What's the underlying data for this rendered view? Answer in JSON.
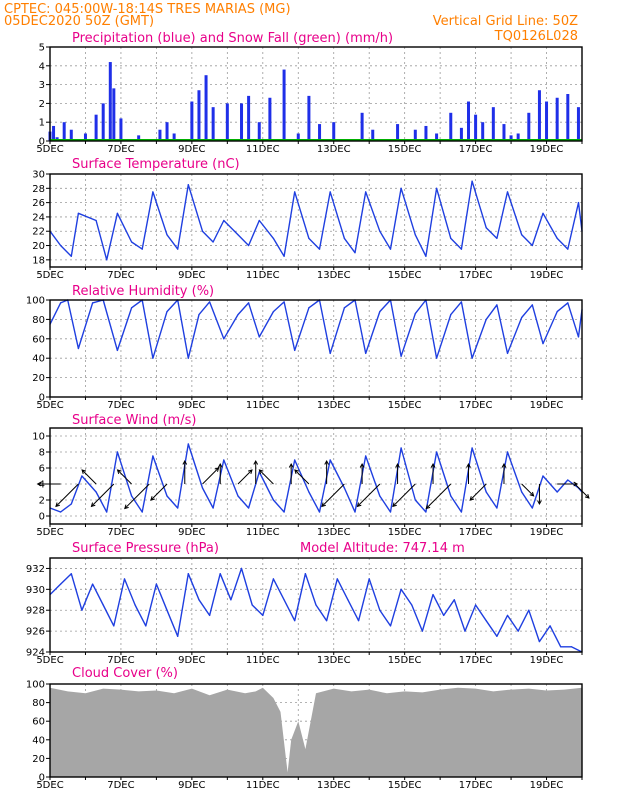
{
  "header": {
    "line1": "CPTEC:  045:00W-18:14S  TRES MARIAS (MG)",
    "line2_left": "05DEC2020 50Z (GMT)",
    "line2_right": "Vertical Grid Line: 50Z",
    "code": "TQ0126L028"
  },
  "colors": {
    "precip": "#1f2fe8",
    "snow": "#00b000",
    "line": "#1f3fe0",
    "cloud": "#a6a6a6",
    "title": "#e8008a",
    "header": "#ff7f00"
  },
  "x_axis": {
    "labels": [
      "5DEC",
      "7DEC",
      "9DEC",
      "11DEC",
      "13DEC",
      "15DEC",
      "17DEC",
      "19DEC"
    ],
    "start_day": 5,
    "end_day": 20
  },
  "chart_data": [
    {
      "id": "precip",
      "type": "bar",
      "title": "Precipitation (blue) and Snow Fall (green) (mm/h)",
      "ylim": [
        0,
        5
      ],
      "yticks": [
        0,
        1,
        2,
        3,
        4,
        5
      ],
      "x": [
        5.0,
        5.1,
        5.2,
        5.4,
        5.6,
        6.0,
        6.3,
        6.5,
        6.7,
        6.8,
        7.0,
        7.5,
        8.1,
        8.3,
        8.5,
        9.0,
        9.2,
        9.4,
        9.6,
        10.0,
        10.4,
        10.6,
        10.9,
        11.2,
        11.6,
        12.0,
        12.3,
        12.6,
        13.0,
        13.8,
        14.1,
        14.5,
        14.8,
        15.3,
        15.6,
        15.9,
        16.3,
        16.6,
        16.8,
        17.0,
        17.2,
        17.5,
        17.8,
        18.0,
        18.2,
        18.5,
        18.8,
        19.0,
        19.3,
        19.6,
        19.9
      ],
      "values": [
        0.5,
        0.8,
        0.2,
        1.0,
        0.6,
        0.4,
        1.4,
        2.0,
        4.2,
        2.8,
        1.2,
        0.3,
        0.6,
        1.0,
        0.4,
        2.1,
        2.7,
        3.5,
        1.8,
        2.0,
        2.0,
        2.4,
        1.0,
        2.3,
        3.8,
        0.4,
        2.4,
        0.9,
        1.0,
        1.5,
        0.6,
        0.1,
        0.9,
        0.6,
        0.8,
        0.4,
        1.5,
        0.7,
        2.1,
        1.4,
        1.0,
        1.8,
        0.9,
        0.3,
        0.4,
        1.5,
        2.7,
        2.1,
        2.3,
        2.5,
        1.8
      ],
      "snow": "all zero"
    },
    {
      "id": "temp",
      "type": "line",
      "title": "Surface Temperature (nC)",
      "ylim": [
        17,
        30
      ],
      "yticks": [
        18,
        20,
        22,
        24,
        26,
        28,
        30
      ],
      "x": [
        5.0,
        5.3,
        5.6,
        5.8,
        6.3,
        6.6,
        6.9,
        7.3,
        7.6,
        7.9,
        8.3,
        8.6,
        8.9,
        9.3,
        9.6,
        9.9,
        10.3,
        10.6,
        10.9,
        11.3,
        11.6,
        11.9,
        12.3,
        12.6,
        12.9,
        13.3,
        13.6,
        13.9,
        14.3,
        14.6,
        14.9,
        15.3,
        15.6,
        15.9,
        16.3,
        16.6,
        16.9,
        17.3,
        17.6,
        17.9,
        18.3,
        18.6,
        18.9,
        19.3,
        19.6,
        19.9,
        20.0
      ],
      "values": [
        22.0,
        20.0,
        18.5,
        24.5,
        23.5,
        18.0,
        24.5,
        20.5,
        19.5,
        27.5,
        21.5,
        19.5,
        28.5,
        22.0,
        20.5,
        23.5,
        21.5,
        20.0,
        23.5,
        21.0,
        18.5,
        27.5,
        21.0,
        19.5,
        27.5,
        21.0,
        19.0,
        27.5,
        22.0,
        19.5,
        28.0,
        21.5,
        18.5,
        28.0,
        21.0,
        19.5,
        29.0,
        22.5,
        21.0,
        27.5,
        21.5,
        20.0,
        24.5,
        21.0,
        19.5,
        26.0,
        22.0
      ]
    },
    {
      "id": "rh",
      "type": "line",
      "title": "Relative Humidity (%)",
      "ylim": [
        0,
        100
      ],
      "yticks": [
        0,
        20,
        40,
        60,
        80,
        100
      ],
      "x": [
        5.0,
        5.3,
        5.5,
        5.8,
        6.2,
        6.5,
        6.9,
        7.3,
        7.6,
        7.9,
        8.3,
        8.6,
        8.9,
        9.2,
        9.5,
        9.9,
        10.3,
        10.6,
        10.9,
        11.3,
        11.6,
        11.9,
        12.3,
        12.6,
        12.9,
        13.3,
        13.6,
        13.9,
        14.3,
        14.6,
        14.9,
        15.3,
        15.6,
        15.9,
        16.3,
        16.6,
        16.9,
        17.3,
        17.6,
        17.9,
        18.3,
        18.6,
        18.9,
        19.3,
        19.6,
        19.9,
        20.0
      ],
      "values": [
        75,
        97,
        100,
        50,
        97,
        100,
        48,
        92,
        100,
        40,
        88,
        100,
        40,
        85,
        98,
        60,
        85,
        97,
        62,
        88,
        98,
        48,
        92,
        100,
        45,
        92,
        100,
        45,
        88,
        100,
        42,
        86,
        100,
        40,
        85,
        98,
        40,
        80,
        95,
        45,
        82,
        95,
        55,
        88,
        97,
        62,
        90
      ]
    },
    {
      "id": "wind",
      "type": "line",
      "title": "Surface Wind (m/s)",
      "ylim": [
        -1,
        11
      ],
      "yticks": [
        0,
        2,
        4,
        6,
        8,
        10
      ],
      "x": [
        5.0,
        5.3,
        5.6,
        5.9,
        6.3,
        6.6,
        6.9,
        7.3,
        7.6,
        7.9,
        8.3,
        8.6,
        8.9,
        9.3,
        9.6,
        9.9,
        10.3,
        10.6,
        10.9,
        11.3,
        11.6,
        11.9,
        12.3,
        12.6,
        12.9,
        13.3,
        13.6,
        13.9,
        14.3,
        14.6,
        14.9,
        15.3,
        15.6,
        15.9,
        16.3,
        16.6,
        16.9,
        17.3,
        17.6,
        17.9,
        18.3,
        18.6,
        18.9,
        19.3,
        19.6,
        19.9,
        20.0
      ],
      "values": [
        1.0,
        0.5,
        1.5,
        5.0,
        3.0,
        0.5,
        8.0,
        2.5,
        0.5,
        7.5,
        2.5,
        1.0,
        9.0,
        3.5,
        1.0,
        7.0,
        2.5,
        1.0,
        5.5,
        2.0,
        0.5,
        7.0,
        3.0,
        0.5,
        7.0,
        3.5,
        0.5,
        7.5,
        2.5,
        0.5,
        8.5,
        2.0,
        0.5,
        8.0,
        2.5,
        0.5,
        8.5,
        3.0,
        1.0,
        8.0,
        3.0,
        1.0,
        5.0,
        3.0,
        4.5,
        3.5,
        3.0
      ],
      "barbs": [
        {
          "x": 5.3,
          "len": 0.5,
          "dir": "left"
        },
        {
          "x": 5.8,
          "len": 0.8,
          "dir": "down-left"
        },
        {
          "x": 6.3,
          "len": 0.4,
          "dir": "up-left"
        },
        {
          "x": 6.8,
          "len": 0.8,
          "dir": "down-left"
        },
        {
          "x": 7.3,
          "len": 0.4,
          "dir": "up-left"
        },
        {
          "x": 7.8,
          "len": 0.9,
          "dir": "down-left"
        },
        {
          "x": 8.3,
          "len": 0.5,
          "dir": "down-left"
        },
        {
          "x": 8.8,
          "len": 0.5,
          "dir": "up"
        },
        {
          "x": 9.3,
          "len": 0.5,
          "dir": "up-right"
        },
        {
          "x": 9.8,
          "len": 0.4,
          "dir": "up"
        },
        {
          "x": 10.3,
          "len": 0.4,
          "dir": "up-right"
        },
        {
          "x": 10.8,
          "len": 0.5,
          "dir": "up"
        },
        {
          "x": 11.3,
          "len": 0.4,
          "dir": "up-left"
        },
        {
          "x": 11.8,
          "len": 0.4,
          "dir": "up"
        },
        {
          "x": 12.3,
          "len": 0.4,
          "dir": "up-left"
        },
        {
          "x": 12.8,
          "len": 0.5,
          "dir": "up"
        },
        {
          "x": 13.3,
          "len": 0.8,
          "dir": "down-left"
        },
        {
          "x": 13.8,
          "len": 0.4,
          "dir": "up"
        },
        {
          "x": 14.3,
          "len": 0.8,
          "dir": "down-left"
        },
        {
          "x": 14.8,
          "len": 0.4,
          "dir": "up"
        },
        {
          "x": 15.3,
          "len": 0.8,
          "dir": "down-left"
        },
        {
          "x": 15.8,
          "len": 0.4,
          "dir": "up"
        },
        {
          "x": 16.3,
          "len": 0.9,
          "dir": "down-left"
        },
        {
          "x": 16.8,
          "len": 0.4,
          "dir": "up"
        },
        {
          "x": 17.3,
          "len": 0.5,
          "dir": "down-left"
        },
        {
          "x": 17.8,
          "len": 0.4,
          "dir": "up"
        },
        {
          "x": 18.3,
          "len": 0.3,
          "dir": "down-right"
        },
        {
          "x": 18.8,
          "len": 0.4,
          "dir": "down"
        },
        {
          "x": 19.3,
          "len": 0.4,
          "dir": "right"
        },
        {
          "x": 19.8,
          "len": 0.4,
          "dir": "down-right"
        }
      ]
    },
    {
      "id": "pres",
      "type": "line",
      "title": "Surface Pressure (hPa)",
      "subtitle": "Model Altitude: 747.14 m",
      "ylim": [
        924,
        933
      ],
      "yticks": [
        924,
        926,
        928,
        930,
        932
      ],
      "x": [
        5.0,
        5.3,
        5.6,
        5.9,
        6.2,
        6.5,
        6.8,
        7.1,
        7.4,
        7.7,
        8.0,
        8.3,
        8.6,
        8.9,
        9.2,
        9.5,
        9.8,
        10.1,
        10.4,
        10.7,
        11.0,
        11.3,
        11.6,
        11.9,
        12.2,
        12.5,
        12.8,
        13.1,
        13.4,
        13.7,
        14.0,
        14.3,
        14.6,
        14.9,
        15.2,
        15.5,
        15.8,
        16.1,
        16.4,
        16.7,
        17.0,
        17.3,
        17.6,
        17.9,
        18.2,
        18.5,
        18.8,
        19.1,
        19.4,
        19.7,
        20.0
      ],
      "values": [
        929.5,
        930.5,
        931.5,
        928.0,
        930.5,
        928.5,
        926.5,
        931.0,
        928.5,
        926.5,
        930.5,
        928.0,
        925.5,
        931.5,
        929.0,
        927.5,
        931.5,
        929.0,
        932.0,
        928.5,
        927.5,
        931.0,
        929.0,
        927.0,
        931.5,
        928.5,
        927.0,
        931.0,
        929.0,
        927.0,
        931.0,
        928.0,
        926.5,
        930.0,
        928.5,
        926.0,
        929.5,
        927.5,
        929.0,
        926.0,
        928.5,
        927.0,
        925.5,
        927.5,
        926.0,
        928.0,
        925.0,
        926.5,
        924.5,
        924.5,
        924.0
      ]
    },
    {
      "id": "cloud",
      "type": "area",
      "title": "Cloud Cover (%)",
      "ylim": [
        0,
        100
      ],
      "yticks": [
        0,
        20,
        40,
        60,
        80,
        100
      ],
      "x": [
        5.0,
        5.5,
        6.0,
        6.5,
        7.0,
        7.5,
        8.0,
        8.5,
        9.0,
        9.5,
        10.0,
        10.5,
        10.8,
        11.0,
        11.3,
        11.5,
        11.7,
        11.8,
        12.0,
        12.2,
        12.5,
        13.0,
        13.5,
        14.0,
        14.5,
        15.0,
        15.5,
        16.0,
        16.5,
        17.0,
        17.5,
        18.0,
        18.5,
        19.0,
        19.5,
        20.0
      ],
      "values": [
        96,
        92,
        90,
        95,
        94,
        92,
        93,
        90,
        95,
        88,
        94,
        90,
        92,
        96,
        85,
        70,
        5,
        40,
        60,
        30,
        90,
        95,
        92,
        94,
        90,
        92,
        91,
        94,
        96,
        95,
        92,
        94,
        95,
        93,
        94,
        96
      ]
    }
  ]
}
